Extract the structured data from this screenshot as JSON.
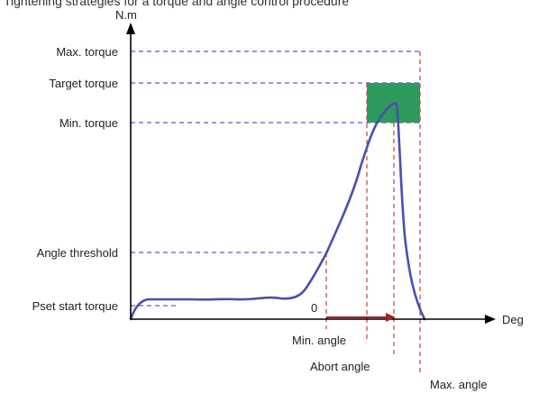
{
  "caption": "Tightening strategies for a torque and angle control procedure",
  "axes": {
    "y_unit": "N.m",
    "x_unit": "Deg"
  },
  "torque_levels": {
    "max_torque": "Max. torque",
    "target_torque": "Target torque",
    "min_torque": "Min. torque",
    "angle_threshold": "Angle threshold",
    "pset_start_torque": "Pset start torque"
  },
  "angle_marks": {
    "zero_label": "0",
    "min_angle": "Min. angle",
    "abort_angle": "Abort angle",
    "max_angle": "Max. angle"
  },
  "colors": {
    "curve": "#4a4fae",
    "guide_blue": "#5a5ac8",
    "guide_red": "#c0504d",
    "window_fill": "#2e9a5c",
    "arrow": "#a52323",
    "axis": "#000000"
  }
}
